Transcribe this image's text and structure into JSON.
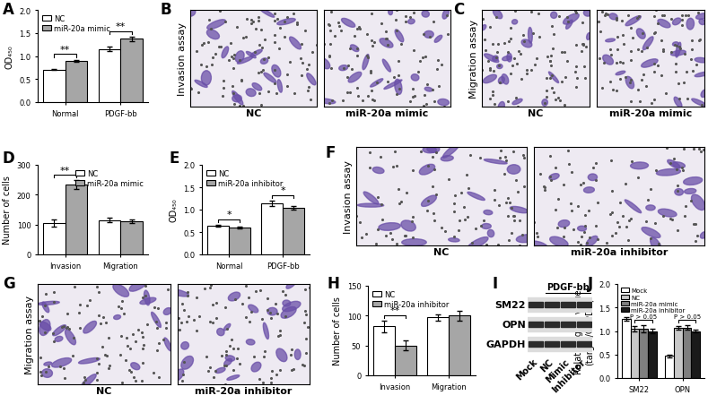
{
  "chart_data": [
    {
      "panel": "A",
      "type": "bar",
      "ylabel": "OD₄₅₀",
      "categories": [
        "Normal",
        "PDGF-bb"
      ],
      "series": [
        {
          "name": "NC",
          "color": "#ffffff",
          "values": [
            0.7,
            1.15
          ],
          "errors": [
            0.01,
            0.05
          ]
        },
        {
          "name": "miR-20a mimic",
          "color": "#a6a6a6",
          "values": [
            0.9,
            1.37
          ],
          "errors": [
            0.02,
            0.05
          ]
        }
      ],
      "ylim": [
        0,
        2.0
      ],
      "yticks": [
        {
          "value": 0,
          "label": "0.0"
        },
        {
          "value": 0.5,
          "label": "0.5"
        },
        {
          "value": 1.0,
          "label": "1.0"
        },
        {
          "value": 1.5,
          "label": "1.5"
        },
        {
          "value": 2.0,
          "label": "2.0"
        }
      ],
      "legend": "upper left",
      "significance": [
        {
          "category": "Normal",
          "from": "NC",
          "to": "miR-20a mimic",
          "text": "**"
        },
        {
          "category": "PDGF-bb",
          "from": "NC",
          "to": "miR-20a mimic",
          "text": "**"
        }
      ]
    },
    {
      "panel": "D",
      "type": "bar",
      "ylabel": "Number of cells",
      "categories": [
        "Invasion",
        "Migration"
      ],
      "series": [
        {
          "name": "NC",
          "color": "#ffffff",
          "values": [
            105,
            115
          ],
          "errors": [
            12,
            8
          ]
        },
        {
          "name": "miR-20a mimic",
          "color": "#a6a6a6",
          "values": [
            233,
            110
          ],
          "errors": [
            15,
            6
          ]
        }
      ],
      "ylim": [
        0,
        300
      ],
      "yticks": [
        0,
        100,
        200,
        300
      ],
      "legend": "upper right",
      "significance": [
        {
          "category": "Invasion",
          "from": "NC",
          "to": "miR-20a mimic",
          "text": "**"
        }
      ]
    },
    {
      "panel": "E",
      "type": "bar",
      "ylabel": "OD₄₅₀",
      "categories": [
        "Normal",
        "PDGF-bb"
      ],
      "series": [
        {
          "name": "NC",
          "color": "#ffffff",
          "values": [
            0.65,
            1.15
          ],
          "errors": [
            0.02,
            0.06
          ]
        },
        {
          "name": "miR-20a inhibitor",
          "color": "#a6a6a6",
          "values": [
            0.6,
            1.05
          ],
          "errors": [
            0.02,
            0.04
          ]
        }
      ],
      "ylim": [
        0,
        2.0
      ],
      "yticks": [
        {
          "value": 0,
          "label": "0.0"
        },
        {
          "value": 0.5,
          "label": "0.5"
        },
        {
          "value": 1.0,
          "label": "1.0"
        },
        {
          "value": 1.5,
          "label": "1.5"
        },
        {
          "value": 2.0,
          "label": "2.0"
        }
      ],
      "legend": "upper left",
      "significance": [
        {
          "category": "Normal",
          "from": "NC",
          "to": "miR-20a inhibitor",
          "text": "*"
        },
        {
          "category": "PDGF-bb",
          "from": "NC",
          "to": "miR-20a inhibitor",
          "text": "*"
        }
      ]
    },
    {
      "panel": "H",
      "type": "bar",
      "ylabel": "Number of cells",
      "categories": [
        "Invasion",
        "Migration"
      ],
      "series": [
        {
          "name": "NC",
          "color": "#ffffff",
          "values": [
            82,
            97
          ],
          "errors": [
            10,
            5
          ]
        },
        {
          "name": "miR-20a inhibitor",
          "color": "#a6a6a6",
          "values": [
            50,
            100
          ],
          "errors": [
            8,
            8
          ]
        }
      ],
      "ylim": [
        0,
        150
      ],
      "yticks": [
        0,
        50,
        100,
        150
      ],
      "legend": "upper left",
      "significance": [
        {
          "category": "Invasion",
          "from": "NC",
          "to": "miR-20a inhibitor",
          "text": "**"
        }
      ]
    },
    {
      "panel": "J",
      "type": "bar",
      "ylabel": "Relative gray value\n(target/GAPDH)",
      "categories": [
        "SM22",
        "OPN"
      ],
      "series": [
        {
          "name": "Mock",
          "color": "#ffffff",
          "values": [
            1.25,
            0.47
          ],
          "errors": [
            0.04,
            0.03
          ]
        },
        {
          "name": "NC",
          "color": "#c8c8c8",
          "values": [
            1.05,
            1.07
          ],
          "errors": [
            0.06,
            0.04
          ]
        },
        {
          "name": "miR-20a mimic",
          "color": "#7f7f7f",
          "values": [
            1.05,
            1.07
          ],
          "errors": [
            0.07,
            0.05
          ]
        },
        {
          "name": "miR-20a inhibitor",
          "color": "#1a1a1a",
          "values": [
            1.0,
            1.0
          ],
          "errors": [
            0.05,
            0.03
          ]
        }
      ],
      "ylim": [
        0,
        2.0
      ],
      "yticks": [
        {
          "value": 0,
          "label": "0.0"
        },
        {
          "value": 0.5,
          "label": "0.5"
        },
        {
          "value": 1.0,
          "label": "1.0"
        },
        {
          "value": 1.5,
          "label": "1.5"
        },
        {
          "value": 2.0,
          "label": "2.0"
        }
      ],
      "legend": "upper left",
      "significance": [
        {
          "category": "SM22",
          "from": "NC",
          "to": "miR-20a inhibitor",
          "text": "P > 0.05"
        },
        {
          "category": "OPN",
          "from": "NC",
          "to": "miR-20a inhibitor",
          "text": "P > 0.05"
        }
      ]
    }
  ],
  "images": [
    {
      "panel": "B",
      "ylabel": "Invasion assay",
      "images": [
        "NC",
        "miR-20a mimic"
      ]
    },
    {
      "panel": "C",
      "ylabel": "Migration assay",
      "images": [
        "NC",
        "miR-20a mimic"
      ]
    },
    {
      "panel": "F",
      "ylabel": "Invasion assay",
      "images": [
        "NC",
        "miR-20a inhibitor"
      ]
    },
    {
      "panel": "G",
      "ylabel": "Migration assay",
      "images": [
        "NC",
        "miR-20a inhibitor"
      ]
    }
  ],
  "blot": {
    "panel": "I",
    "rows": [
      "SM22",
      "OPN",
      "GAPDH"
    ],
    "lanes": [
      "Mock",
      "NC",
      "Mimic",
      "Inhibitor"
    ],
    "treatment": "PDGF-bb",
    "treated_lanes": [
      "NC",
      "Mimic",
      "Inhibitor"
    ]
  }
}
